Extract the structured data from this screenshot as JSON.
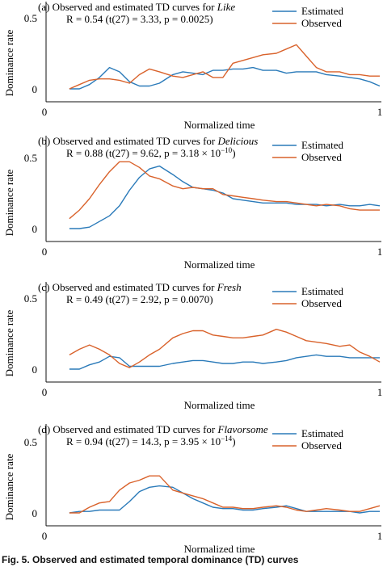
{
  "colors": {
    "estimated": "#2a7ab9",
    "observed": "#d9622b",
    "axis": "#111111"
  },
  "caption": "Fig. 5. Observed and estimated temporal dominance (TD) curves",
  "chart_data": [
    {
      "type": "line",
      "title": "(a) Observed and  estimated TD curves for ",
      "title_term": "Like",
      "stat": "R = 0.54 (t(27) = 3.33, p = 0.0025)",
      "xlabel": "Normalized time",
      "ylabel": "Dominance rate",
      "xlim": [
        0,
        1
      ],
      "ylim": [
        0,
        0.5
      ],
      "x_ticks": [
        "0",
        "1"
      ],
      "y_ticks": [
        "0",
        "0.5"
      ],
      "legend": "top-right",
      "x": [
        0.07,
        0.1,
        0.13,
        0.16,
        0.19,
        0.22,
        0.25,
        0.28,
        0.31,
        0.34,
        0.38,
        0.41,
        0.44,
        0.47,
        0.5,
        0.53,
        0.56,
        0.59,
        0.62,
        0.65,
        0.69,
        0.72,
        0.75,
        0.78,
        0.81,
        0.84,
        0.88,
        0.91,
        0.94,
        0.97,
        1.0
      ],
      "series": [
        {
          "name": "Estimated",
          "values": [
            0.0,
            0.0,
            0.03,
            0.08,
            0.15,
            0.12,
            0.05,
            0.02,
            0.02,
            0.04,
            0.1,
            0.12,
            0.11,
            0.1,
            0.13,
            0.13,
            0.14,
            0.14,
            0.15,
            0.13,
            0.13,
            0.11,
            0.12,
            0.12,
            0.12,
            0.1,
            0.09,
            0.08,
            0.07,
            0.05,
            0.02
          ]
        },
        {
          "name": "Observed",
          "values": [
            0.0,
            0.03,
            0.06,
            0.07,
            0.07,
            0.06,
            0.04,
            0.1,
            0.14,
            0.12,
            0.09,
            0.08,
            0.1,
            0.12,
            0.08,
            0.08,
            0.18,
            0.2,
            0.22,
            0.24,
            0.25,
            0.28,
            0.31,
            0.23,
            0.15,
            0.12,
            0.12,
            0.1,
            0.1,
            0.09,
            0.09
          ]
        }
      ]
    },
    {
      "type": "line",
      "title": "(b) Observed and  estimated TD curves for ",
      "title_term": "Delicious",
      "stat": "R = 0.88 (t(27) = 9.62, p = 3.18 × 10",
      "stat_exp": "−10",
      "stat_tail": ")",
      "xlabel": "Normalized time",
      "ylabel": "Dominance rate",
      "xlim": [
        0,
        1
      ],
      "ylim": [
        0,
        0.5
      ],
      "x_ticks": [
        "0",
        "1"
      ],
      "y_ticks": [
        "0",
        "0.5"
      ],
      "legend": "top-right",
      "x": [
        0.07,
        0.1,
        0.13,
        0.16,
        0.19,
        0.22,
        0.25,
        0.28,
        0.31,
        0.34,
        0.38,
        0.41,
        0.44,
        0.47,
        0.5,
        0.53,
        0.56,
        0.59,
        0.62,
        0.65,
        0.69,
        0.72,
        0.75,
        0.78,
        0.81,
        0.84,
        0.88,
        0.91,
        0.94,
        0.97,
        1.0
      ],
      "series": [
        {
          "name": "Estimated",
          "values": [
            0.0,
            0.0,
            0.01,
            0.05,
            0.09,
            0.16,
            0.27,
            0.36,
            0.42,
            0.44,
            0.38,
            0.33,
            0.29,
            0.28,
            0.27,
            0.25,
            0.21,
            0.2,
            0.19,
            0.18,
            0.18,
            0.18,
            0.17,
            0.17,
            0.17,
            0.16,
            0.17,
            0.16,
            0.16,
            0.17,
            0.16
          ]
        },
        {
          "name": "Observed",
          "values": [
            0.07,
            0.13,
            0.21,
            0.31,
            0.4,
            0.47,
            0.47,
            0.43,
            0.37,
            0.35,
            0.3,
            0.28,
            0.29,
            0.28,
            0.28,
            0.24,
            0.23,
            0.22,
            0.21,
            0.2,
            0.19,
            0.19,
            0.18,
            0.17,
            0.16,
            0.17,
            0.16,
            0.14,
            0.13,
            0.13,
            0.13
          ]
        }
      ]
    },
    {
      "type": "line",
      "title": "(c) Observed and  estimated TD curves for ",
      "title_term": "Fresh",
      "stat": "R = 0.49  (t(27) = 2.92, p = 0.0070)",
      "xlabel": "Normalized time",
      "ylabel": "Dominance rate",
      "xlim": [
        0,
        1
      ],
      "ylim": [
        0,
        0.5
      ],
      "x_ticks": [
        "0",
        "1"
      ],
      "y_ticks": [
        "0",
        "0.5"
      ],
      "legend": "top-right",
      "x": [
        0.07,
        0.1,
        0.13,
        0.16,
        0.19,
        0.22,
        0.25,
        0.28,
        0.31,
        0.34,
        0.38,
        0.41,
        0.44,
        0.47,
        0.5,
        0.53,
        0.56,
        0.59,
        0.62,
        0.65,
        0.69,
        0.72,
        0.75,
        0.78,
        0.81,
        0.84,
        0.88,
        0.91,
        0.94,
        0.97,
        1.0
      ],
      "series": [
        {
          "name": "Estimated",
          "values": [
            0.0,
            0.0,
            0.03,
            0.05,
            0.09,
            0.08,
            0.02,
            0.02,
            0.02,
            0.02,
            0.04,
            0.05,
            0.06,
            0.06,
            0.05,
            0.04,
            0.04,
            0.05,
            0.05,
            0.04,
            0.05,
            0.06,
            0.08,
            0.09,
            0.1,
            0.09,
            0.09,
            0.08,
            0.08,
            0.08,
            0.08
          ]
        },
        {
          "name": "Observed",
          "values": [
            0.1,
            0.14,
            0.17,
            0.14,
            0.1,
            0.04,
            0.01,
            0.05,
            0.1,
            0.14,
            0.22,
            0.25,
            0.27,
            0.27,
            0.24,
            0.23,
            0.22,
            0.22,
            0.23,
            0.24,
            0.28,
            0.26,
            0.23,
            0.2,
            0.19,
            0.18,
            0.16,
            0.17,
            0.12,
            0.09,
            0.05
          ]
        }
      ]
    },
    {
      "type": "line",
      "title": "(d) Observed and  estimated TD curves for ",
      "title_term": "Flavorsome",
      "stat": "R = 0.94  (t(27) = 14.3, p = 3.95 × 10",
      "stat_exp": "−14",
      "stat_tail": ")",
      "xlabel": "Normalized time",
      "ylabel": "Dominance rate",
      "xlim": [
        0,
        1
      ],
      "ylim": [
        0,
        0.5
      ],
      "x_ticks": [
        "0",
        "1"
      ],
      "y_ticks": [
        "0",
        "0.5"
      ],
      "legend": "top-right",
      "x": [
        0.07,
        0.1,
        0.13,
        0.16,
        0.19,
        0.22,
        0.25,
        0.28,
        0.31,
        0.34,
        0.38,
        0.41,
        0.44,
        0.47,
        0.5,
        0.53,
        0.56,
        0.59,
        0.62,
        0.65,
        0.69,
        0.72,
        0.75,
        0.78,
        0.81,
        0.84,
        0.88,
        0.91,
        0.94,
        0.97,
        1.0
      ],
      "series": [
        {
          "name": "Estimated",
          "values": [
            0.0,
            0.01,
            0.01,
            0.02,
            0.02,
            0.02,
            0.08,
            0.15,
            0.18,
            0.19,
            0.18,
            0.14,
            0.1,
            0.07,
            0.04,
            0.03,
            0.03,
            0.02,
            0.02,
            0.03,
            0.04,
            0.05,
            0.03,
            0.01,
            0.01,
            0.01,
            0.01,
            0.01,
            0.0,
            0.01,
            0.01
          ]
        },
        {
          "name": "Observed",
          "values": [
            0.0,
            0.0,
            0.04,
            0.07,
            0.08,
            0.16,
            0.21,
            0.23,
            0.26,
            0.26,
            0.16,
            0.14,
            0.12,
            0.1,
            0.07,
            0.04,
            0.04,
            0.03,
            0.03,
            0.04,
            0.05,
            0.04,
            0.02,
            0.01,
            0.02,
            0.03,
            0.02,
            0.01,
            0.01,
            0.03,
            0.05
          ]
        }
      ]
    }
  ]
}
